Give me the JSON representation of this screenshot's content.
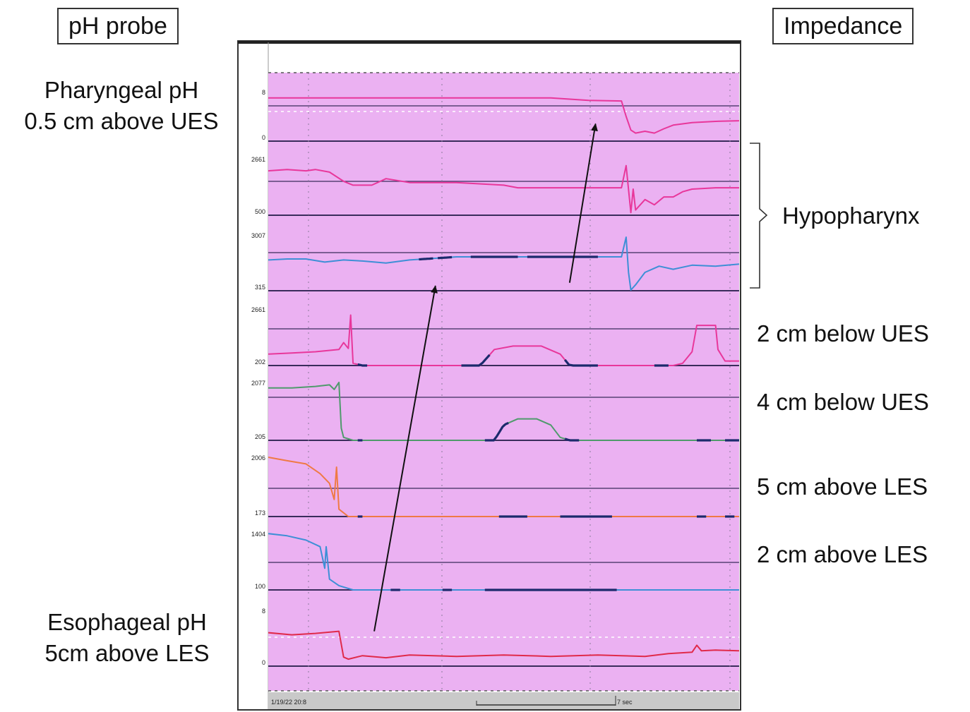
{
  "left_labels": {
    "box": "pH probe",
    "pharyngeal_line1": "Pharyngeal pH",
    "pharyngeal_line2": "0.5 cm above UES",
    "esophageal_line1": "Esophageal pH",
    "esophageal_line2": "5cm above LES"
  },
  "right_labels": {
    "box": "Impedance",
    "hypopharynx": "Hypopharynx",
    "ch3": "2 cm below UES",
    "ch4": "4 cm below UES",
    "ch5": "5 cm above LES",
    "ch6": "2 cm above LES"
  },
  "footer": {
    "timestamp": "1/19/22 20:8",
    "scale": "7 sec"
  },
  "colors": {
    "background": "#ebb1f2",
    "pink": "#e8379b",
    "red": "#e02a4a",
    "blue": "#3e8fd6",
    "green": "#4f9a6c",
    "orange": "#ef7a45",
    "dark_segment": "#1b2a6c"
  },
  "chart_data": {
    "type": "line",
    "x_range": [
      0,
      100
    ],
    "channels": [
      {
        "id": "pharyngeal_ph",
        "color": "pink",
        "top_label": "8",
        "bottom_label": "0",
        "y_range": [
          0,
          8
        ],
        "x": [
          0,
          20,
          40,
          60,
          68,
          75,
          76,
          77,
          78,
          80,
          82,
          84,
          86,
          90,
          95,
          100
        ],
        "y": [
          7.0,
          7.0,
          7.0,
          7.0,
          6.6,
          6.5,
          4.0,
          1.8,
          1.3,
          1.6,
          1.3,
          2.0,
          2.6,
          3.0,
          3.2,
          3.3
        ]
      },
      {
        "id": "hypopharynx_upper",
        "color": "pink",
        "top_label": "2661",
        "bottom_label": "500",
        "y_range": [
          500,
          2661
        ],
        "x": [
          0,
          4,
          8,
          10,
          13,
          16,
          18,
          22,
          25,
          30,
          40,
          50,
          53,
          60,
          70,
          75,
          76,
          77,
          77.5,
          78,
          80,
          82,
          84,
          86,
          88,
          90,
          95,
          100
        ],
        "y": [
          2200,
          2250,
          2200,
          2250,
          2150,
          1800,
          1650,
          1650,
          1900,
          1750,
          1750,
          1650,
          1550,
          1550,
          1550,
          1550,
          2400,
          600,
          1500,
          700,
          1100,
          900,
          1200,
          1200,
          1400,
          1500,
          1550,
          1550
        ]
      },
      {
        "id": "hypopharynx_lower",
        "color": "blue",
        "top_label": "3007",
        "bottom_label": "315",
        "y_range": [
          315,
          3007
        ],
        "x": [
          0,
          4,
          8,
          12,
          16,
          20,
          25,
          30,
          40,
          50,
          60,
          70,
          75,
          76,
          76.5,
          77,
          78,
          80,
          83,
          86,
          90,
          95,
          100
        ],
        "y": [
          1800,
          1850,
          1850,
          1700,
          1800,
          1750,
          1650,
          1800,
          1950,
          1950,
          1950,
          1950,
          1950,
          2900,
          1200,
          350,
          600,
          1200,
          1500,
          1350,
          1550,
          1500,
          1600
        ]
      },
      {
        "id": "ch_2cm_below_ues",
        "color": "pink",
        "top_label": "2661",
        "bottom_label": "202",
        "y_range": [
          202,
          2661
        ],
        "x": [
          0,
          5,
          10,
          15,
          16,
          17,
          17.5,
          18,
          20,
          30,
          45,
          48,
          52,
          58,
          62,
          64,
          70,
          86,
          88,
          90,
          91,
          95,
          95.5,
          97,
          100
        ],
        "y": [
          700,
          750,
          800,
          900,
          1200,
          950,
          2400,
          300,
          202,
          202,
          202,
          900,
          1050,
          1050,
          700,
          202,
          202,
          202,
          300,
          800,
          1950,
          1950,
          900,
          400,
          400
        ]
      },
      {
        "id": "ch_4cm_below_ues",
        "color": "green",
        "top_label": "2077",
        "bottom_label": "205",
        "y_range": [
          205,
          2077
        ],
        "x": [
          0,
          5,
          10,
          13,
          14,
          15,
          15.5,
          16,
          18,
          40,
          48,
          50,
          53,
          57,
          60,
          62,
          64,
          70,
          100
        ],
        "y": [
          1900,
          1900,
          1950,
          2000,
          1850,
          2080,
          600,
          300,
          205,
          205,
          205,
          700,
          900,
          900,
          700,
          300,
          205,
          205,
          205
        ]
      },
      {
        "id": "ch_5cm_above_les",
        "color": "orange",
        "top_label": "2006",
        "bottom_label": "173",
        "y_range": [
          173,
          2006
        ],
        "x": [
          0,
          4,
          8,
          11,
          13,
          14,
          14.5,
          15,
          17,
          30,
          60,
          100
        ],
        "y": [
          2006,
          1900,
          1800,
          1500,
          1200,
          700,
          1700,
          400,
          173,
          173,
          173,
          173
        ]
      },
      {
        "id": "ch_2cm_above_les",
        "color": "blue",
        "top_label": "1404",
        "bottom_label": "100",
        "y_range": [
          100,
          1404
        ],
        "x": [
          0,
          4,
          8,
          11,
          12,
          12.3,
          13,
          15,
          18,
          25,
          50,
          75,
          100
        ],
        "y": [
          1400,
          1350,
          1250,
          1100,
          600,
          1100,
          350,
          200,
          100,
          100,
          100,
          100,
          100
        ]
      },
      {
        "id": "esophageal_ph",
        "color": "red",
        "top_label": "8",
        "bottom_label": "0",
        "y_range": [
          0,
          8
        ],
        "x": [
          0,
          5,
          10,
          15,
          16,
          17,
          20,
          25,
          30,
          40,
          50,
          60,
          70,
          75,
          80,
          85,
          90,
          91,
          92,
          95,
          100
        ],
        "y": [
          4.8,
          4.5,
          4.7,
          5.0,
          1.3,
          1.0,
          1.5,
          1.2,
          1.6,
          1.4,
          1.6,
          1.4,
          1.6,
          1.5,
          1.4,
          1.8,
          2.0,
          3.0,
          2.2,
          2.3,
          2.2
        ]
      }
    ],
    "dark_segments": [
      {
        "channel": "hypopharynx_lower",
        "ranges": [
          [
            32,
            35
          ],
          [
            36,
            39
          ],
          [
            43,
            53
          ],
          [
            55,
            70
          ]
        ]
      },
      {
        "channel": "ch_2cm_below_ues",
        "ranges": [
          [
            19,
            21
          ],
          [
            41,
            47
          ],
          [
            63,
            70
          ],
          [
            82,
            85
          ]
        ]
      },
      {
        "channel": "ch_4cm_below_ues",
        "ranges": [
          [
            19,
            20
          ],
          [
            46,
            51
          ],
          [
            63,
            66
          ],
          [
            91,
            94
          ],
          [
            97,
            100
          ]
        ]
      },
      {
        "channel": "ch_5cm_above_les",
        "ranges": [
          [
            19,
            20
          ],
          [
            49,
            55
          ],
          [
            62,
            73
          ],
          [
            91,
            93
          ],
          [
            97,
            99
          ]
        ]
      },
      {
        "channel": "ch_2cm_above_les",
        "ranges": [
          [
            26,
            28
          ],
          [
            37,
            39
          ],
          [
            46,
            74
          ]
        ]
      }
    ],
    "arrows": [
      {
        "from": {
          "channel": "esophageal_ph",
          "x": 22.5,
          "y": 5.0
        },
        "to": {
          "channel": "hypopharynx_lower",
          "x": 35.5,
          "y": 550
        }
      },
      {
        "from": {
          "channel": "hypopharynx_lower",
          "x": 64,
          "y": 700
        },
        "to": {
          "channel": "pharyngeal_ph",
          "x": 69.5,
          "y": 2.8
        }
      }
    ]
  }
}
